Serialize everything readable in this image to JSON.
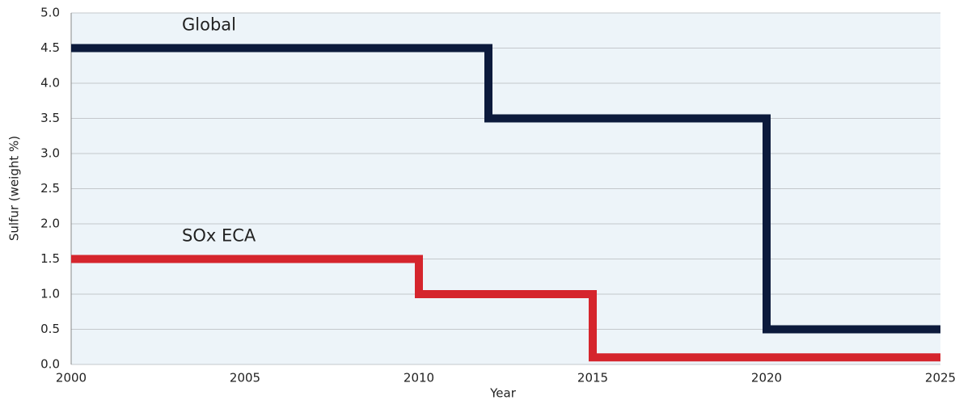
{
  "chart_data": {
    "type": "line",
    "xlabel": "Year",
    "ylabel": "Sulfur (weight %)",
    "series": [
      {
        "name": "Global",
        "color": "#0c1a3c",
        "x": [
          2000,
          2012,
          2012,
          2020,
          2020,
          2025
        ],
        "values": [
          4.5,
          4.5,
          3.5,
          3.5,
          0.5,
          0.5
        ]
      },
      {
        "name": "SOx ECA",
        "color": "#d5252d",
        "x": [
          2000,
          2010,
          2010,
          2015,
          2015,
          2025
        ],
        "values": [
          1.5,
          1.5,
          1.0,
          1.0,
          0.1,
          0.1
        ]
      }
    ],
    "xlim": [
      2000,
      2025
    ],
    "xticks": [
      2000,
      2005,
      2010,
      2015,
      2020,
      2025
    ],
    "ylim": [
      0,
      5
    ],
    "yticks": [
      {
        "value": 0,
        "label": "0.0"
      },
      {
        "value": 0.5,
        "label": "0.5"
      },
      {
        "value": 1,
        "label": "1.0"
      },
      {
        "value": 1.5,
        "label": "1.5"
      },
      {
        "value": 2,
        "label": "2.0"
      },
      {
        "value": 2.5,
        "label": "2.5"
      },
      {
        "value": 3,
        "label": "3.0"
      },
      {
        "value": 3.5,
        "label": "3.5"
      },
      {
        "value": 4,
        "label": "4.0"
      },
      {
        "value": 4.5,
        "label": "4.5"
      },
      {
        "value": 5,
        "label": "5.0"
      }
    ],
    "grid": true
  }
}
